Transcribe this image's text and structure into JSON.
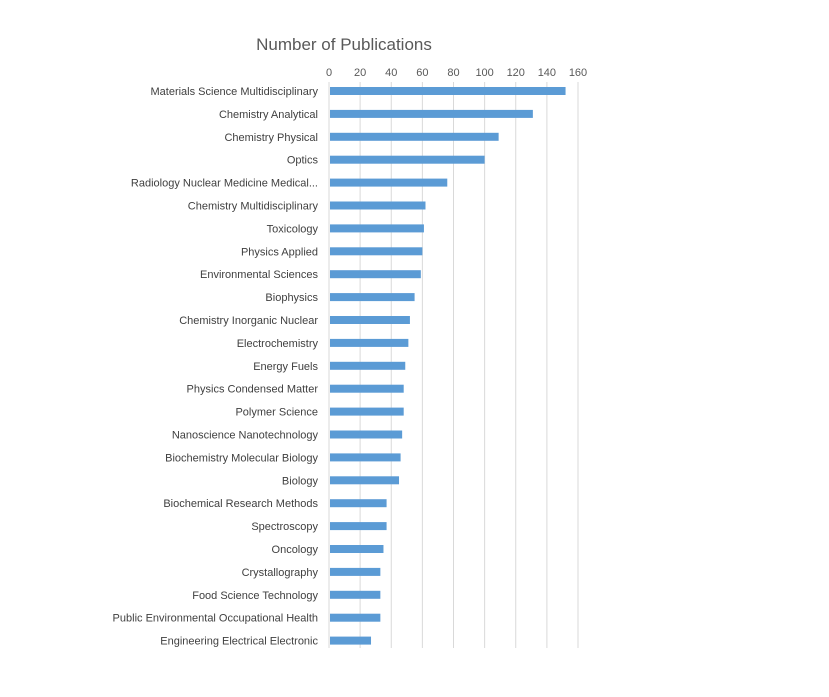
{
  "chart_data": {
    "type": "bar",
    "orientation": "horizontal",
    "title": "Number of Publications",
    "xlabel": "",
    "ylabel": "",
    "xlim": [
      0,
      160
    ],
    "x_ticks": [
      0,
      20,
      40,
      60,
      80,
      100,
      120,
      140,
      160
    ],
    "x_axis_position": "top",
    "grid": "vertical",
    "legend": "none",
    "bar_color": "#5b9bd5",
    "categories": [
      "Materials Science Multidisciplinary",
      "Chemistry Analytical",
      "Chemistry Physical",
      "Optics",
      "Radiology Nuclear Medicine Medical...",
      "Chemistry Multidisciplinary",
      "Toxicology",
      "Physics Applied",
      "Environmental Sciences",
      "Biophysics",
      "Chemistry Inorganic Nuclear",
      "Electrochemistry",
      "Energy Fuels",
      "Physics Condensed Matter",
      "Polymer Science",
      "Nanoscience Nanotechnology",
      "Biochemistry Molecular Biology",
      "Biology",
      "Biochemical Research Methods",
      "Spectroscopy",
      "Oncology",
      "Crystallography",
      "Food Science Technology",
      "Public Environmental Occupational Health",
      "Engineering Electrical Electronic"
    ],
    "values": [
      152,
      131,
      109,
      100,
      76,
      62,
      61,
      60,
      59,
      55,
      52,
      51,
      49,
      48,
      48,
      47,
      46,
      45,
      37,
      37,
      35,
      33,
      33,
      33,
      27
    ]
  }
}
